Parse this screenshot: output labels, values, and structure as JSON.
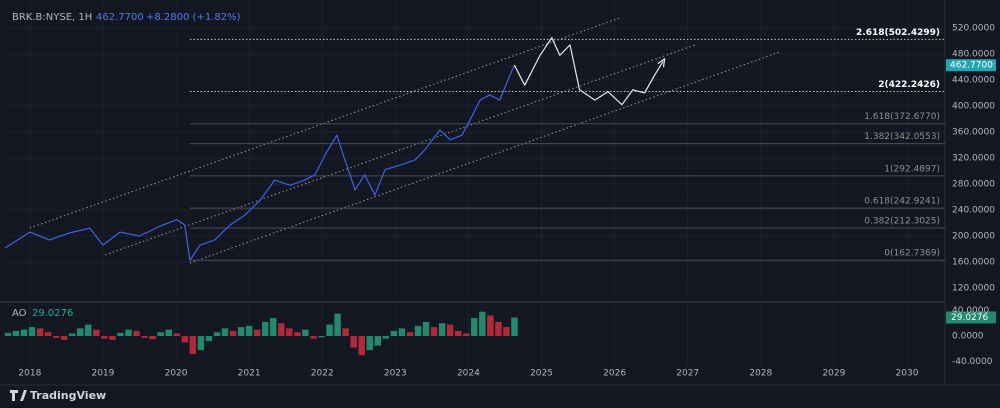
{
  "chart_data": [
    {
      "type": "line",
      "title": "BRK.B:NYSE, 1H",
      "price_label": "462.7700",
      "change_label": "+8.2800 (+1.82%)",
      "x": [
        2017.66,
        2018.0,
        2018.27,
        2018.55,
        2018.82,
        2019.0,
        2019.23,
        2019.5,
        2019.78,
        2020.01,
        2020.12,
        2020.19,
        2020.33,
        2020.53,
        2020.74,
        2020.94,
        2021.15,
        2021.35,
        2021.56,
        2021.76,
        2021.9,
        2022.04,
        2022.2,
        2022.31,
        2022.45,
        2022.58,
        2022.72,
        2022.86,
        2023.06,
        2023.27,
        2023.4,
        2023.61,
        2023.75,
        2023.91,
        2024.02,
        2024.16,
        2024.29,
        2024.43,
        2024.54,
        2024.63,
        2024.77,
        2024.98,
        2025.14,
        2025.25,
        2025.39,
        2025.52,
        2025.73,
        2025.91,
        2026.1,
        2026.25,
        2026.41,
        2026.55,
        2026.66
      ],
      "series": [
        {
          "color": "#3f62e8",
          "values": [
            181.5,
            206,
            194,
            205,
            212,
            186,
            206,
            200,
            215,
            225,
            217,
            162.7,
            186,
            194,
            217,
            232,
            255,
            286,
            278,
            286,
            294,
            325,
            355,
            317,
            271,
            294,
            263,
            302,
            309,
            317,
            332,
            363,
            348,
            355,
            378,
            409,
            417,
            409,
            440,
            462.77,
            null,
            null,
            null,
            null,
            null,
            null,
            null,
            null,
            null,
            null,
            null,
            null,
            null
          ]
        },
        {
          "color": "#e8e8e8",
          "values": [
            null,
            null,
            null,
            null,
            null,
            null,
            null,
            null,
            null,
            null,
            null,
            null,
            null,
            null,
            null,
            null,
            null,
            null,
            null,
            null,
            null,
            null,
            null,
            null,
            null,
            null,
            null,
            null,
            null,
            null,
            null,
            null,
            null,
            null,
            null,
            null,
            null,
            null,
            null,
            462.77,
            432,
            478,
            505,
            478,
            494,
            425,
            409,
            422,
            402,
            425,
            420,
            448,
            468
          ]
        }
      ],
      "fib_levels": [
        {
          "value": 502.4299,
          "label": "2.618(502.4299)"
        },
        {
          "value": 422.2426,
          "label": "2(422.2426)"
        },
        {
          "value": 372.677,
          "label": "1.618(372.6770)"
        },
        {
          "value": 342.0553,
          "label": "1.382(342.0553)"
        },
        {
          "value": 292.4897,
          "label": "1(292.4897)"
        },
        {
          "value": 242.9241,
          "label": "0.618(242.9241)"
        },
        {
          "value": 212.3025,
          "label": "0.382(212.3025)"
        },
        {
          "value": 162.7369,
          "label": "0(162.7369)"
        }
      ],
      "fib_start": 2020.19,
      "channel_lines": [
        {
          "x": [
            2018.0,
            2026.07
          ],
          "values": [
            212.3,
            535.4
          ]
        },
        {
          "x": [
            2019.03,
            2027.1
          ],
          "values": [
            170.8,
            493.8
          ]
        },
        {
          "x": [
            2020.19,
            2028.26
          ],
          "values": [
            158.5,
            483.1
          ]
        }
      ],
      "xlim": [
        2017.66,
        2030.52
      ],
      "xticks": [
        2018,
        2019,
        2020,
        2021,
        2022,
        2023,
        2024,
        2025,
        2026,
        2027,
        2028,
        2029,
        2030
      ],
      "ylim": [
        100,
        551.5
      ],
      "yticks": [
        {
          "value": 120,
          "label": "120.0000"
        },
        {
          "value": 160,
          "label": "160.0000"
        },
        {
          "value": 200,
          "label": "200.0000"
        },
        {
          "value": 240,
          "label": "240.0000"
        },
        {
          "value": 280,
          "label": "280.0000"
        },
        {
          "value": 320,
          "label": "320.0000"
        },
        {
          "value": 360,
          "label": "360.0000"
        },
        {
          "value": 400,
          "label": "400.0000"
        },
        {
          "value": 440,
          "label": "440.0000"
        },
        {
          "value": 480,
          "label": "480.0000"
        },
        {
          "value": 520,
          "label": "520.0000"
        }
      ],
      "grid": true,
      "tag_color": "#22a6b3"
    },
    {
      "type": "bar",
      "title": "AO",
      "x": [
        2017.7,
        2017.81,
        2017.92,
        2018.03,
        2018.14,
        2018.25,
        2018.36,
        2018.47,
        2018.58,
        2018.69,
        2018.8,
        2018.91,
        2019.02,
        2019.13,
        2019.24,
        2019.35,
        2019.46,
        2019.57,
        2019.68,
        2019.79,
        2019.9,
        2020.01,
        2020.12,
        2020.23,
        2020.34,
        2020.45,
        2020.56,
        2020.67,
        2020.78,
        2020.89,
        2021.0,
        2021.11,
        2021.22,
        2021.33,
        2021.44,
        2021.55,
        2021.66,
        2021.77,
        2021.88,
        2021.99,
        2022.1,
        2022.21,
        2022.32,
        2022.43,
        2022.54,
        2022.65,
        2022.76,
        2022.87,
        2022.98,
        2023.09,
        2023.2,
        2023.31,
        2023.42,
        2023.53,
        2023.64,
        2023.75,
        2023.86,
        2023.97,
        2024.08,
        2024.19,
        2024.3,
        2024.41,
        2024.52,
        2024.63
      ],
      "series": [
        {
          "values": [
            5,
            8,
            10,
            14,
            12,
            6,
            -3,
            -6,
            4,
            12,
            18,
            10,
            -4,
            -6,
            5,
            10,
            8,
            -3,
            -5,
            6,
            10,
            4,
            -10,
            -28,
            -22,
            -8,
            6,
            12,
            8,
            14,
            16,
            10,
            22,
            28,
            20,
            12,
            6,
            10,
            -4,
            -2,
            18,
            35,
            12,
            -18,
            -30,
            -22,
            -15,
            -4,
            8,
            12,
            6,
            16,
            22,
            14,
            20,
            18,
            8,
            4,
            28,
            38,
            32,
            22,
            14,
            29.0276
          ]
        }
      ],
      "up_color": "#1f8a6e",
      "down_color": "#b3293a",
      "xlim": [
        2017.66,
        2030.52
      ],
      "ylim": [
        -49,
        51
      ],
      "yticks": [
        {
          "value": 40,
          "label": "40.0000"
        },
        {
          "value": 0,
          "label": "0.0000"
        },
        {
          "value": -40,
          "label": "-40.0000"
        }
      ],
      "tag_color": "#1f8a6e"
    }
  ],
  "footer": {
    "brand": "TradingView"
  }
}
